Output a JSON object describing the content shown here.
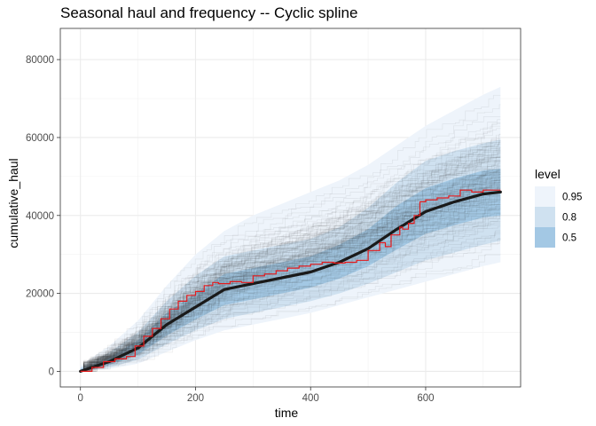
{
  "chart_data": {
    "type": "line",
    "title": "Seasonal haul and frequency -- Cyclic spline",
    "xlabel": "time",
    "ylabel": "cumulative_haul",
    "xlim": [
      -35,
      765
    ],
    "ylim": [
      -4000,
      88000
    ],
    "x_ticks": [
      0,
      200,
      400,
      600
    ],
    "y_ticks": [
      0,
      20000,
      40000,
      60000,
      80000
    ],
    "x_tick_labels": [
      "0",
      "200",
      "400",
      "600"
    ],
    "y_tick_labels": [
      "0",
      "20000",
      "40000",
      "60000",
      "80000"
    ],
    "grid": true,
    "legend": {
      "title": "level",
      "placement": "right",
      "entries": [
        {
          "label": "0.95",
          "color": "#eef4fb"
        },
        {
          "label": "0.8",
          "color": "#cfe1f0"
        },
        {
          "label": "0.5",
          "color": "#a3c8e4"
        }
      ]
    },
    "x": [
      0,
      50,
      100,
      150,
      200,
      250,
      300,
      350,
      400,
      450,
      500,
      550,
      600,
      650,
      700,
      730
    ],
    "median": [
      0,
      2500,
      6000,
      12000,
      16500,
      21000,
      22500,
      24000,
      25500,
      28000,
      31500,
      36500,
      41000,
      43500,
      45500,
      46000
    ],
    "bands": [
      {
        "level": "0.95",
        "color": "#eef4fb",
        "lower": [
          0,
          600,
          2000,
          5000,
          8000,
          10500,
          12000,
          13500,
          15000,
          17000,
          19000,
          21000,
          23000,
          25000,
          27000,
          28000
        ],
        "upper": [
          1500,
          6500,
          13000,
          22000,
          30000,
          36000,
          40000,
          43000,
          46000,
          49000,
          53000,
          58000,
          63000,
          67000,
          71000,
          73000
        ]
      },
      {
        "level": "0.8",
        "color": "#cfe1f0",
        "lower": [
          0,
          1000,
          3000,
          7000,
          10500,
          13500,
          15000,
          16500,
          18000,
          20000,
          22500,
          25500,
          28500,
          30500,
          32500,
          33500
        ],
        "upper": [
          1000,
          4800,
          10000,
          18000,
          24500,
          29500,
          31000,
          32500,
          34000,
          37000,
          42000,
          48500,
          54000,
          56500,
          58500,
          59500
        ]
      },
      {
        "level": "0.5",
        "color": "#a3c8e4",
        "lower": [
          0,
          1600,
          4300,
          9200,
          13300,
          17000,
          18500,
          20000,
          21500,
          23800,
          27000,
          31300,
          35300,
          37500,
          39500,
          40000
        ],
        "upper": [
          600,
          3500,
          8000,
          15000,
          20000,
          25000,
          26500,
          28000,
          29500,
          32500,
          36500,
          42500,
          47000,
          49500,
          51500,
          52000
        ]
      }
    ],
    "observed": {
      "color": "#e41a1c",
      "x": [
        0,
        20,
        40,
        60,
        80,
        95,
        110,
        125,
        140,
        155,
        170,
        185,
        200,
        215,
        230,
        240,
        260,
        280,
        300,
        320,
        340,
        360,
        380,
        400,
        420,
        440,
        460,
        480,
        500,
        520,
        530,
        540,
        555,
        560,
        570,
        580,
        590,
        600,
        620,
        640,
        660,
        680,
        700,
        730
      ],
      "y": [
        0,
        1000,
        2500,
        3200,
        3800,
        6500,
        9000,
        11000,
        13500,
        16000,
        18000,
        19500,
        20500,
        22000,
        22800,
        22500,
        23000,
        22800,
        24500,
        25000,
        25800,
        26500,
        27000,
        27500,
        28000,
        27800,
        28000,
        28500,
        31000,
        33000,
        32000,
        35000,
        37000,
        36500,
        38000,
        40000,
        43500,
        44000,
        44500,
        45000,
        46500,
        46000,
        46500,
        46500
      ]
    },
    "simulations": {
      "count": 140,
      "color": "#333333"
    }
  }
}
